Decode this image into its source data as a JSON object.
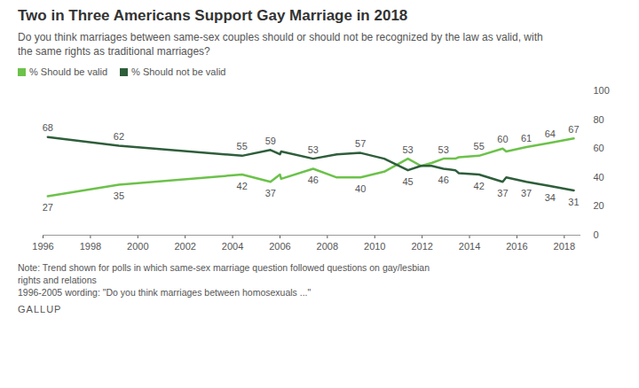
{
  "chart_data": {
    "type": "line",
    "title": "Two in Three Americans Support Gay Marriage in 2018",
    "subtitle": "Do you think marriages between same-sex couples should or should not be recognized by the law as valid, with the same rights as traditional marriages?",
    "note": [
      "Note: Trend shown for polls in which same-sex marriage question followed questions on gay/lesbian rights and relations",
      "1996-2005 wording: \"Do you think marriages between homosexuals ...\""
    ],
    "source": "GALLUP",
    "x": [
      1996.2,
      1999.2,
      2004.4,
      2005.6,
      2006.0,
      2006.05,
      2007.4,
      2008.4,
      2009.4,
      2010.4,
      2011.4,
      2011.95,
      2012.4,
      2012.9,
      2013.4,
      2013.55,
      2014.4,
      2015.4,
      2015.55,
      2016.4,
      2017.4,
      2018.4
    ],
    "series": [
      {
        "name": "% Should be valid",
        "color": "#6cc24a",
        "values": [
          27,
          35,
          42,
          37,
          42,
          39,
          46,
          40,
          40,
          44,
          53,
          48,
          50,
          53,
          53,
          54,
          55,
          60,
          58,
          61,
          64,
          67
        ],
        "value_labels": [
          "27",
          "35",
          "42",
          "37",
          null,
          null,
          "46",
          null,
          "40",
          null,
          "53",
          null,
          null,
          "53",
          null,
          null,
          "55",
          "60",
          null,
          "61",
          "64",
          "67"
        ]
      },
      {
        "name": "% Should not be valid",
        "color": "#2e5e3b",
        "values": [
          68,
          62,
          55,
          59,
          56,
          58,
          53,
          56,
          57,
          53,
          45,
          48,
          48,
          46,
          45,
          43,
          42,
          37,
          40,
          37,
          34,
          31
        ],
        "value_labels": [
          "68",
          "62",
          "55",
          "59",
          null,
          null,
          "53",
          null,
          "57",
          null,
          "45",
          null,
          null,
          "46",
          null,
          null,
          "42",
          "37",
          null,
          "37",
          "34",
          "31"
        ]
      }
    ],
    "xlim": [
      1996,
      2018.7
    ],
    "xticks": [
      1996,
      1998,
      2000,
      2002,
      2004,
      2006,
      2008,
      2010,
      2012,
      2014,
      2016,
      2018
    ],
    "ylim": [
      0,
      100
    ],
    "yticks": [
      0,
      20,
      40,
      60,
      80,
      100
    ],
    "grid": false,
    "legend": "top-left",
    "data_labels": true
  }
}
